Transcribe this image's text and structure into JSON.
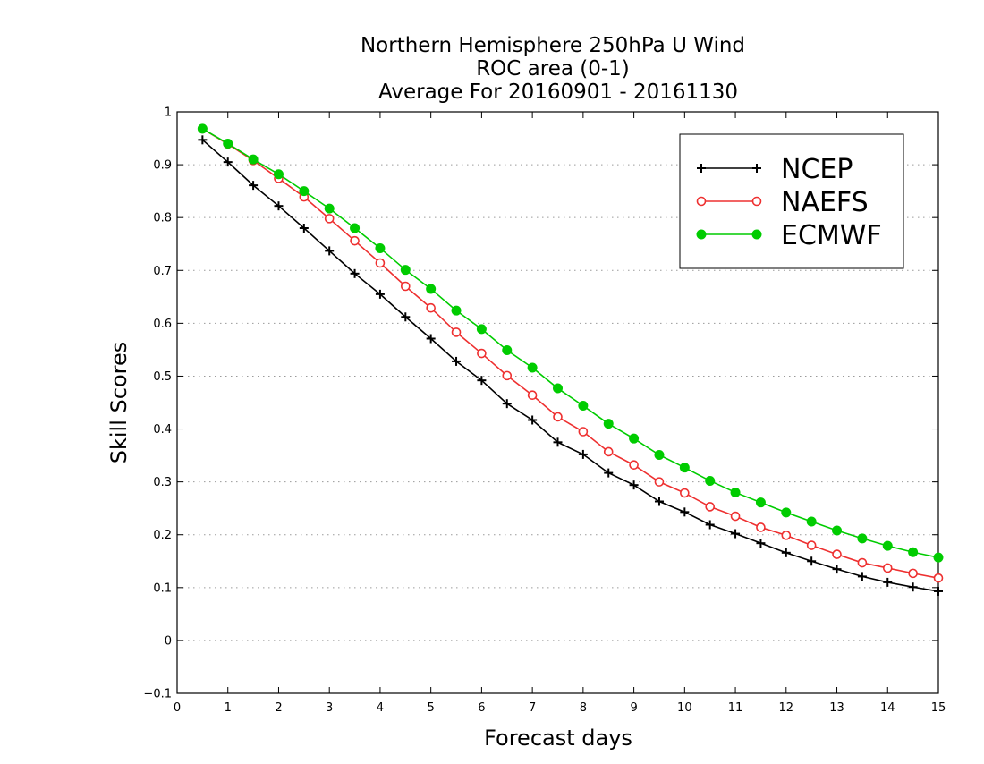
{
  "chart_data": {
    "type": "line",
    "title_lines": [
      "Northern Hemisphere 250hPa U Wind",
      "ROC area (0-1)",
      "Average For 20160901 - 20161130"
    ],
    "xlabel": "Forecast days",
    "ylabel": "Skill Scores",
    "xlim": [
      0,
      15
    ],
    "ylim": [
      -0.1,
      1
    ],
    "x_ticks": [
      "0",
      "1",
      "2",
      "3",
      "4",
      "5",
      "6",
      "7",
      "8",
      "9",
      "10",
      "11",
      "12",
      "13",
      "14",
      "15"
    ],
    "y_ticks": [
      "−0.1",
      "0",
      "0.1",
      "0.2",
      "0.3",
      "0.4",
      "0.5",
      "0.6",
      "0.7",
      "0.8",
      "0.9",
      "1"
    ],
    "grid": "horizontal dotted",
    "legend_position": "top-right",
    "x": [
      0.5,
      1,
      1.5,
      2,
      2.5,
      3,
      3.5,
      4,
      4.5,
      5,
      5.5,
      6,
      6.5,
      7,
      7.5,
      8,
      8.5,
      9,
      9.5,
      10,
      10.5,
      11,
      11.5,
      12,
      12.5,
      13,
      13.5,
      14,
      14.5,
      15
    ],
    "series": [
      {
        "name": "NCEP",
        "color": "#000000",
        "marker": "plus",
        "values": [
          0.947,
          0.905,
          0.861,
          0.822,
          0.78,
          0.737,
          0.694,
          0.655,
          0.612,
          0.571,
          0.528,
          0.492,
          0.448,
          0.417,
          0.375,
          0.352,
          0.317,
          0.294,
          0.263,
          0.243,
          0.219,
          0.202,
          0.184,
          0.166,
          0.15,
          0.135,
          0.121,
          0.11,
          0.101,
          0.093
        ]
      },
      {
        "name": "NAEFS",
        "color": "#ee3030",
        "marker": "open-circle",
        "values": [
          0.968,
          0.939,
          0.908,
          0.874,
          0.839,
          0.798,
          0.756,
          0.714,
          0.67,
          0.629,
          0.583,
          0.543,
          0.501,
          0.464,
          0.423,
          0.395,
          0.357,
          0.332,
          0.3,
          0.279,
          0.253,
          0.235,
          0.214,
          0.199,
          0.18,
          0.163,
          0.147,
          0.137,
          0.127,
          0.118
        ]
      },
      {
        "name": "ECMWF",
        "color": "#00cc00",
        "marker": "filled-circle",
        "values": [
          0.968,
          0.94,
          0.91,
          0.882,
          0.85,
          0.817,
          0.78,
          0.742,
          0.701,
          0.665,
          0.624,
          0.589,
          0.549,
          0.516,
          0.477,
          0.444,
          0.41,
          0.382,
          0.351,
          0.327,
          0.302,
          0.28,
          0.261,
          0.242,
          0.225,
          0.208,
          0.193,
          0.179,
          0.167,
          0.157
        ]
      }
    ]
  }
}
